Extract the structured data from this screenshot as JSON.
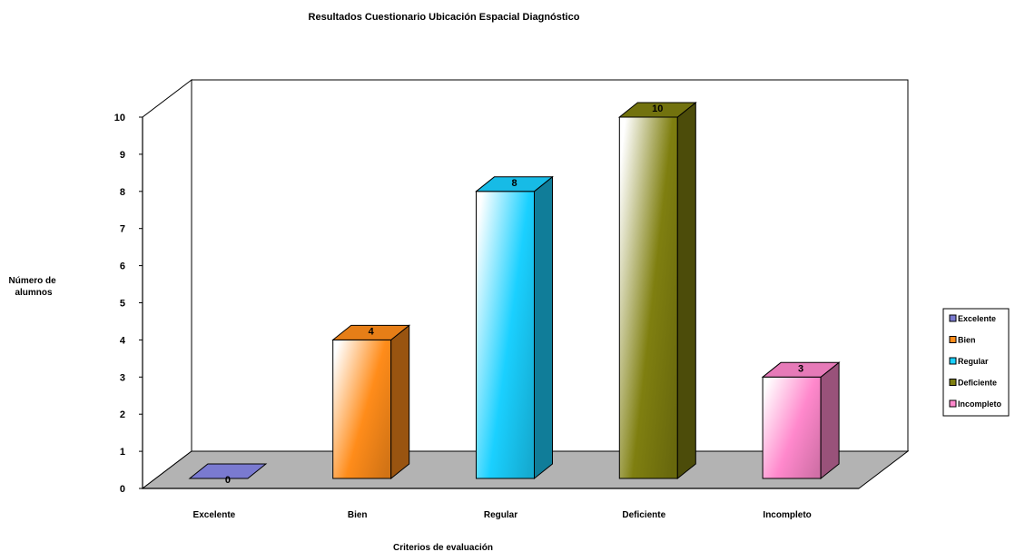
{
  "chart_data": {
    "type": "bar",
    "title": "Resultados Cuestionario Ubicación Espacial Diagnóstico",
    "xlabel": "Criterios de evaluación",
    "ylabel": [
      "Número de",
      "alumnos"
    ],
    "categories": [
      "Excelente",
      "Bien",
      "Regular",
      "Deficiente",
      "Incompleto"
    ],
    "values": [
      0,
      4,
      8,
      10,
      3
    ],
    "ylim": [
      0,
      10
    ],
    "yticks": [
      0,
      1,
      2,
      3,
      4,
      5,
      6,
      7,
      8,
      9,
      10
    ],
    "legend": {
      "position": "right",
      "entries": [
        "Excelente",
        "Bien",
        "Regular",
        "Deficiente",
        "Incompleto"
      ]
    },
    "colors": [
      "#7a7ad0",
      "#ff8c1a",
      "#1ad0ff",
      "#7f7f10",
      "#ff88cc"
    ],
    "grid": false,
    "style": "3d"
  }
}
